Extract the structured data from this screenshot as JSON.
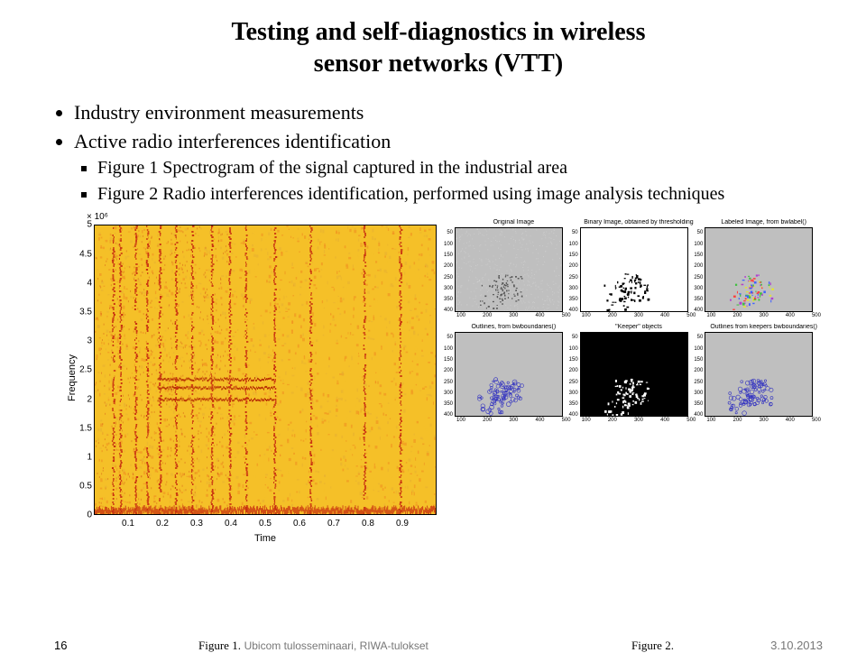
{
  "title_line1": "Testing and self-diagnostics in wireless",
  "title_line2": "sensor networks (VTT)",
  "bullets": {
    "b1": "Industry environment measurements",
    "b2": "Active radio interferences identification",
    "s1": "Figure 1 Spectrogram of the signal captured in the industrial area",
    "s2": "Figure 2 Radio interferences identification, performed using image analysis techniques"
  },
  "spectrogram": {
    "type": "spectrogram",
    "xlabel": "Time",
    "ylabel": "Frequency",
    "exponent": "× 10⁶",
    "xticks": [
      "0.1",
      "0.2",
      "0.3",
      "0.4",
      "0.5",
      "0.6",
      "0.7",
      "0.8",
      "0.9"
    ],
    "yticks": [
      "0",
      "0.5",
      "1",
      "1.5",
      "2",
      "2.5",
      "3",
      "3.5",
      "4",
      "4.5",
      "5"
    ],
    "colors": {
      "low": "#f5c028",
      "mid": "#f09020",
      "high": "#c83010",
      "band": "#b02000",
      "noise": "#e8b030"
    }
  },
  "panels": {
    "titles": [
      "Original Image",
      "Binary Image, obtained by thresholding",
      "Labeled Image, from bwlabel()",
      "Outlines, from bwboundaries()",
      "\"Keeper\" objects",
      "Outlines from keepers bwboundaries()"
    ],
    "ticks_y": [
      "50",
      "100",
      "150",
      "200",
      "250",
      "300",
      "350",
      "400"
    ],
    "ticks_x": [
      "100",
      "200",
      "300",
      "400",
      "500"
    ],
    "colors": {
      "grey_bg": "#bfbfbf",
      "grey_light": "#d4d4d4",
      "black": "#000000",
      "white": "#ffffff",
      "outline": "#3030c0"
    }
  },
  "footer": {
    "page": "16",
    "fig1": "Figure 1.",
    "center": "Ubicom tulosseminaari, RIWA-tulokset",
    "fig2": "Figure 2.",
    "date": "3.10.2013"
  }
}
